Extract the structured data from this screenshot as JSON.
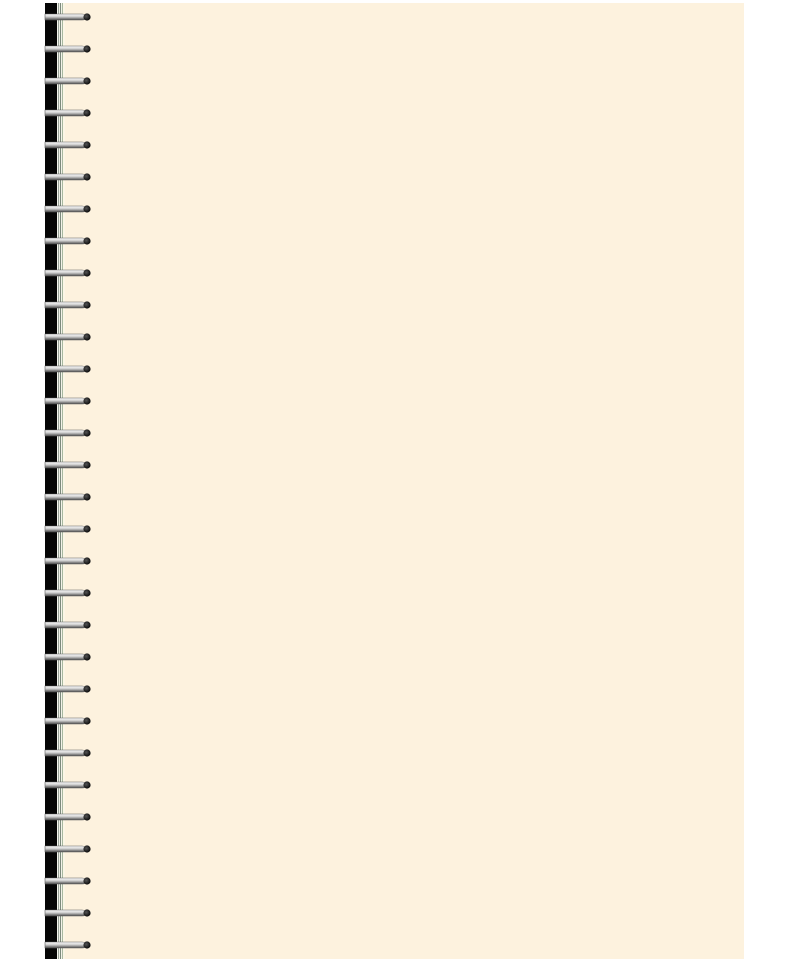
{
  "notebook": {
    "ring_count": 30,
    "colors": {
      "page": "#fdf2de",
      "spine": "#050505",
      "ring_metal_light": "#f0f0f0",
      "ring_metal_dark": "#4a4a4a",
      "ring_hole": "#111111"
    },
    "icons": [
      "spiral-ring-icon"
    ]
  }
}
